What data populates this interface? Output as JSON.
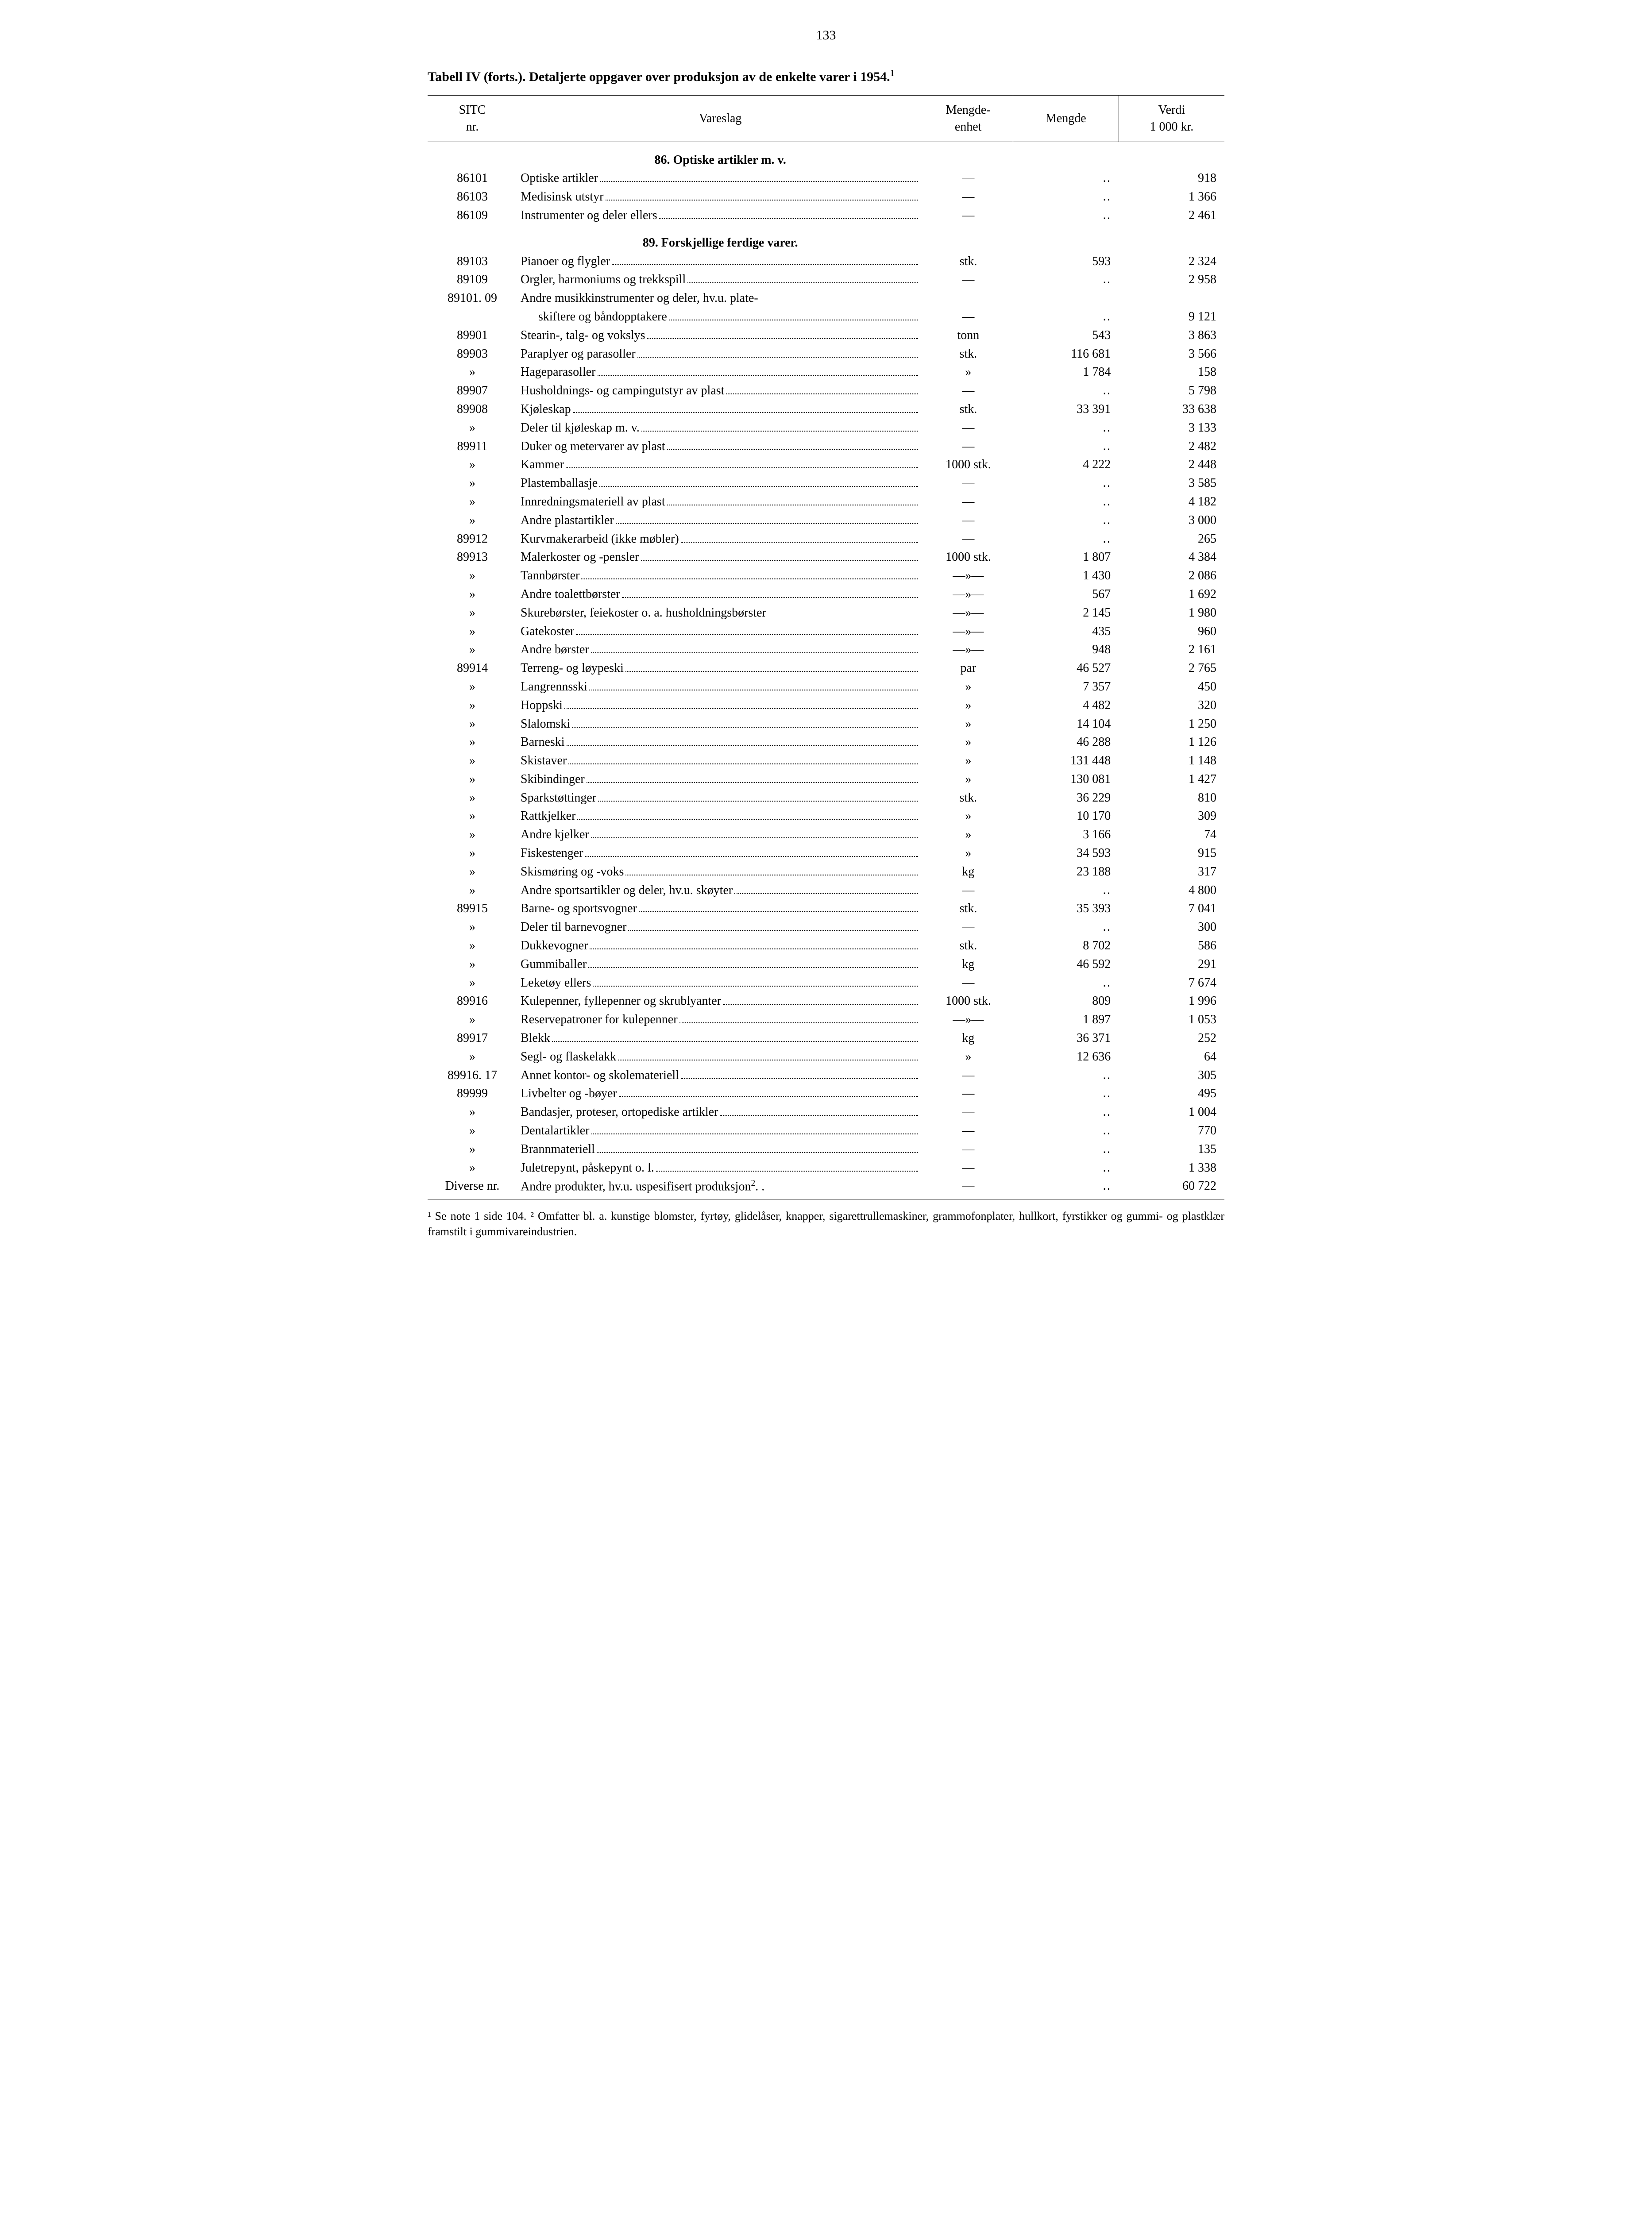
{
  "page_number": "133",
  "table_title_prefix": "Tabell IV (forts.). Detaljerte oppgaver over produksjon av de enkelte varer i 1954.",
  "table_title_sup": "1",
  "columns": {
    "sitc": "SITC\nnr.",
    "desc": "Vareslag",
    "unit": "Mengde-\nenhet",
    "qty": "Mengde",
    "val": "Verdi\n1 000 kr."
  },
  "sections": [
    {
      "heading": "86. Optiske artikler m. v.",
      "rows": [
        {
          "sitc": "86101",
          "desc": "Optiske artikler",
          "unit": "—",
          "qty": "‥",
          "val": "918"
        },
        {
          "sitc": "86103",
          "desc": "Medisinsk utstyr",
          "unit": "—",
          "qty": "‥",
          "val": "1 366"
        },
        {
          "sitc": "86109",
          "desc": "Instrumenter og deler ellers",
          "unit": "—",
          "qty": "‥",
          "val": "2 461"
        }
      ]
    },
    {
      "heading": "89. Forskjellige ferdige varer.",
      "rows": [
        {
          "sitc": "89103",
          "desc": "Pianoer og flygler",
          "unit": "stk.",
          "qty": "593",
          "val": "2 324"
        },
        {
          "sitc": "89109",
          "desc": "Orgler, harmoniums og trekkspill",
          "unit": "—",
          "qty": "‥",
          "val": "2 958"
        },
        {
          "sitc": "89101. 09",
          "desc": "Andre musikkinstrumenter og deler, hv.u. plate-",
          "cont": true
        },
        {
          "sitc": "",
          "desc": "skiftere og båndopptakere",
          "indent": true,
          "unit": "—",
          "qty": "‥",
          "val": "9 121"
        },
        {
          "sitc": "89901",
          "desc": "Stearin-, talg- og vokslys",
          "unit": "tonn",
          "qty": "543",
          "val": "3 863"
        },
        {
          "sitc": "89903",
          "desc": "Paraplyer og parasoller",
          "unit": "stk.",
          "qty": "116 681",
          "val": "3 566"
        },
        {
          "sitc": "»",
          "desc": "Hageparasoller",
          "unit": "»",
          "qty": "1 784",
          "val": "158"
        },
        {
          "sitc": "89907",
          "desc": "Husholdnings- og campingutstyr av plast",
          "unit": "—",
          "qty": "‥",
          "val": "5 798"
        },
        {
          "sitc": "89908",
          "desc": "Kjøleskap",
          "unit": "stk.",
          "qty": "33 391",
          "val": "33 638"
        },
        {
          "sitc": "»",
          "desc": "Deler til kjøleskap m. v.",
          "unit": "—",
          "qty": "‥",
          "val": "3 133"
        },
        {
          "sitc": "89911",
          "desc": "Duker og metervarer av plast",
          "unit": "—",
          "qty": "‥",
          "val": "2 482"
        },
        {
          "sitc": "»",
          "desc": "Kammer",
          "unit": "1000 stk.",
          "qty": "4 222",
          "val": "2 448"
        },
        {
          "sitc": "»",
          "desc": "Plastemballasje",
          "unit": "—",
          "qty": "‥",
          "val": "3 585"
        },
        {
          "sitc": "»",
          "desc": "Innredningsmateriell av plast",
          "unit": "—",
          "qty": "‥",
          "val": "4 182"
        },
        {
          "sitc": "»",
          "desc": "Andre plastartikler",
          "unit": "—",
          "qty": "‥",
          "val": "3 000"
        },
        {
          "sitc": "89912",
          "desc": "Kurvmakerarbeid (ikke møbler)",
          "unit": "—",
          "qty": "‥",
          "val": "265"
        },
        {
          "sitc": "89913",
          "desc": "Malerkoster og -pensler",
          "unit": "1000 stk.",
          "qty": "1 807",
          "val": "4 384"
        },
        {
          "sitc": "»",
          "desc": "Tannbørster",
          "unit": "—»—",
          "qty": "1 430",
          "val": "2 086"
        },
        {
          "sitc": "»",
          "desc": "Andre toalettbørster",
          "unit": "—»—",
          "qty": "567",
          "val": "1 692"
        },
        {
          "sitc": "»",
          "desc": "Skurebørster, feiekoster o. a. husholdningsbørster",
          "nodots": true,
          "unit": "—»—",
          "qty": "2 145",
          "val": "1 980"
        },
        {
          "sitc": "»",
          "desc": "Gatekoster",
          "unit": "—»—",
          "qty": "435",
          "val": "960"
        },
        {
          "sitc": "»",
          "desc": "Andre børster",
          "unit": "—»—",
          "qty": "948",
          "val": "2 161"
        },
        {
          "sitc": "89914",
          "desc": "Terreng- og løypeski",
          "unit": "par",
          "qty": "46 527",
          "val": "2 765"
        },
        {
          "sitc": "»",
          "desc": "Langrennsski",
          "unit": "»",
          "qty": "7 357",
          "val": "450"
        },
        {
          "sitc": "»",
          "desc": "Hoppski",
          "unit": "»",
          "qty": "4 482",
          "val": "320"
        },
        {
          "sitc": "»",
          "desc": "Slalomski",
          "unit": "»",
          "qty": "14 104",
          "val": "1 250"
        },
        {
          "sitc": "»",
          "desc": "Barneski",
          "unit": "»",
          "qty": "46 288",
          "val": "1 126"
        },
        {
          "sitc": "»",
          "desc": "Skistaver",
          "unit": "»",
          "qty": "131 448",
          "val": "1 148"
        },
        {
          "sitc": "»",
          "desc": "Skibindinger",
          "unit": "»",
          "qty": "130 081",
          "val": "1 427"
        },
        {
          "sitc": "»",
          "desc": "Sparkstøttinger",
          "unit": "stk.",
          "qty": "36 229",
          "val": "810"
        },
        {
          "sitc": "»",
          "desc": "Rattkjelker",
          "unit": "»",
          "qty": "10 170",
          "val": "309"
        },
        {
          "sitc": "»",
          "desc": "Andre kjelker",
          "unit": "»",
          "qty": "3 166",
          "val": "74"
        },
        {
          "sitc": "»",
          "desc": "Fiskestenger",
          "unit": "»",
          "qty": "34 593",
          "val": "915"
        },
        {
          "sitc": "»",
          "desc": "Skismøring og -voks",
          "unit": "kg",
          "qty": "23 188",
          "val": "317"
        },
        {
          "sitc": "»",
          "desc": "Andre sportsartikler og deler, hv.u. skøyter",
          "unit": "—",
          "qty": "‥",
          "val": "4 800"
        },
        {
          "sitc": "89915",
          "desc": "Barne- og sportsvogner",
          "unit": "stk.",
          "qty": "35 393",
          "val": "7 041"
        },
        {
          "sitc": "»",
          "desc": "Deler til barnevogner",
          "unit": "—",
          "qty": "‥",
          "val": "300"
        },
        {
          "sitc": "»",
          "desc": "Dukkevogner",
          "unit": "stk.",
          "qty": "8 702",
          "val": "586"
        },
        {
          "sitc": "»",
          "desc": "Gummiballer",
          "unit": "kg",
          "qty": "46 592",
          "val": "291"
        },
        {
          "sitc": "»",
          "desc": "Leketøy ellers",
          "unit": "—",
          "qty": "‥",
          "val": "7 674"
        },
        {
          "sitc": "89916",
          "desc": "Kulepenner, fyllepenner og skrublyanter",
          "unit": "1000 stk.",
          "qty": "809",
          "val": "1 996"
        },
        {
          "sitc": "»",
          "desc": "Reservepatroner for kulepenner",
          "unit": "—»—",
          "qty": "1 897",
          "val": "1 053"
        },
        {
          "sitc": "89917",
          "desc": "Blekk",
          "unit": "kg",
          "qty": "36 371",
          "val": "252"
        },
        {
          "sitc": "»",
          "desc": "Segl- og flaskelakk",
          "unit": "»",
          "qty": "12 636",
          "val": "64"
        },
        {
          "sitc": "89916. 17",
          "desc": "Annet kontor- og skolemateriell",
          "unit": "—",
          "qty": "‥",
          "val": "305"
        },
        {
          "sitc": "89999",
          "desc": "Livbelter og -bøyer",
          "unit": "—",
          "qty": "‥",
          "val": "495"
        },
        {
          "sitc": "»",
          "desc": "Bandasjer, proteser, ortopediske artikler",
          "unit": "—",
          "qty": "‥",
          "val": "1 004"
        },
        {
          "sitc": "»",
          "desc": "Dentalartikler",
          "unit": "—",
          "qty": "‥",
          "val": "770"
        },
        {
          "sitc": "»",
          "desc": "Brannmateriell",
          "unit": "—",
          "qty": "‥",
          "val": "135"
        },
        {
          "sitc": "»",
          "desc": "Juletrepynt, påskepynt o. l.",
          "unit": "—",
          "qty": "‥",
          "val": "1 338"
        },
        {
          "sitc": "Diverse nr.",
          "desc": "Andre produkter, hv.u. uspesifisert produksjon",
          "sup": "2",
          "tail": ". .",
          "nodots": true,
          "unit": "—",
          "qty": "‥",
          "val": "60 722",
          "last": true
        }
      ]
    }
  ],
  "footnote": "¹ Se note 1 side 104.  ² Omfatter bl. a. kunstige blomster, fyrtøy, glidelåser, knapper, sigarettrullemaskiner, grammofonplater, hullkort, fyrstikker og gummi- og plastklær framstilt i gummivareindustrien."
}
